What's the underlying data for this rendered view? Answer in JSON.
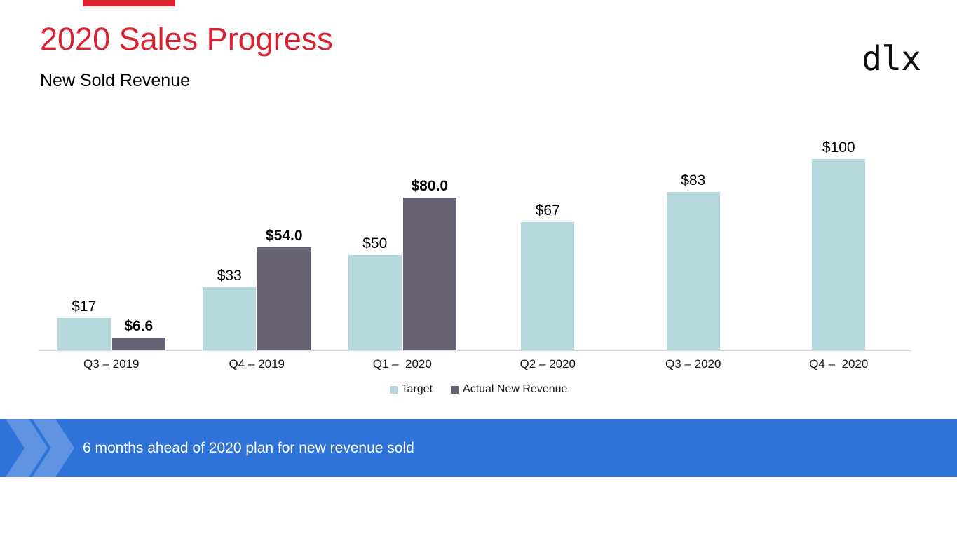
{
  "slide": {
    "title": "2020 Sales Progress",
    "subtitle": "New Sold Revenue",
    "logo_text": "dlx",
    "accent_color": "#d8222f"
  },
  "chart_data": {
    "type": "bar",
    "title": "",
    "xlabel": "",
    "ylabel": "",
    "categories": [
      "Q3 – 2019",
      "Q4 – 2019",
      "Q1 –  2020",
      "Q2 – 2020",
      "Q3 – 2020",
      "Q4 –  2020"
    ],
    "series": [
      {
        "name": "Target",
        "color": "#b5d8dd",
        "values": [
          17,
          33,
          50,
          67,
          83,
          100
        ],
        "data_labels": [
          "$17",
          "$33",
          "$50",
          "$67",
          "$83",
          "$100"
        ],
        "label_bold": false
      },
      {
        "name": "Actual New Revenue",
        "color": "#666273",
        "values": [
          6.6,
          54.0,
          80.0,
          null,
          null,
          null
        ],
        "data_labels": [
          "$6.6",
          "$54.0",
          "$80.0",
          null,
          null,
          null
        ],
        "label_bold": true
      }
    ],
    "ylim": [
      0,
      110
    ],
    "grid": false,
    "legend_position": "bottom",
    "axis_line_color": "#d9d9d9"
  },
  "legend": {
    "items": [
      {
        "label": "Target",
        "color": "#b5d8dd"
      },
      {
        "label": "Actual New Revenue",
        "color": "#666273"
      }
    ]
  },
  "banner": {
    "text": "6 months ahead of 2020 plan for new revenue sold",
    "background_color": "#2f72d8",
    "text_color": "#ffffff",
    "chevron_icon": "double-chevron-right",
    "chevron_color": "rgba(255,255,255,0.24)"
  }
}
